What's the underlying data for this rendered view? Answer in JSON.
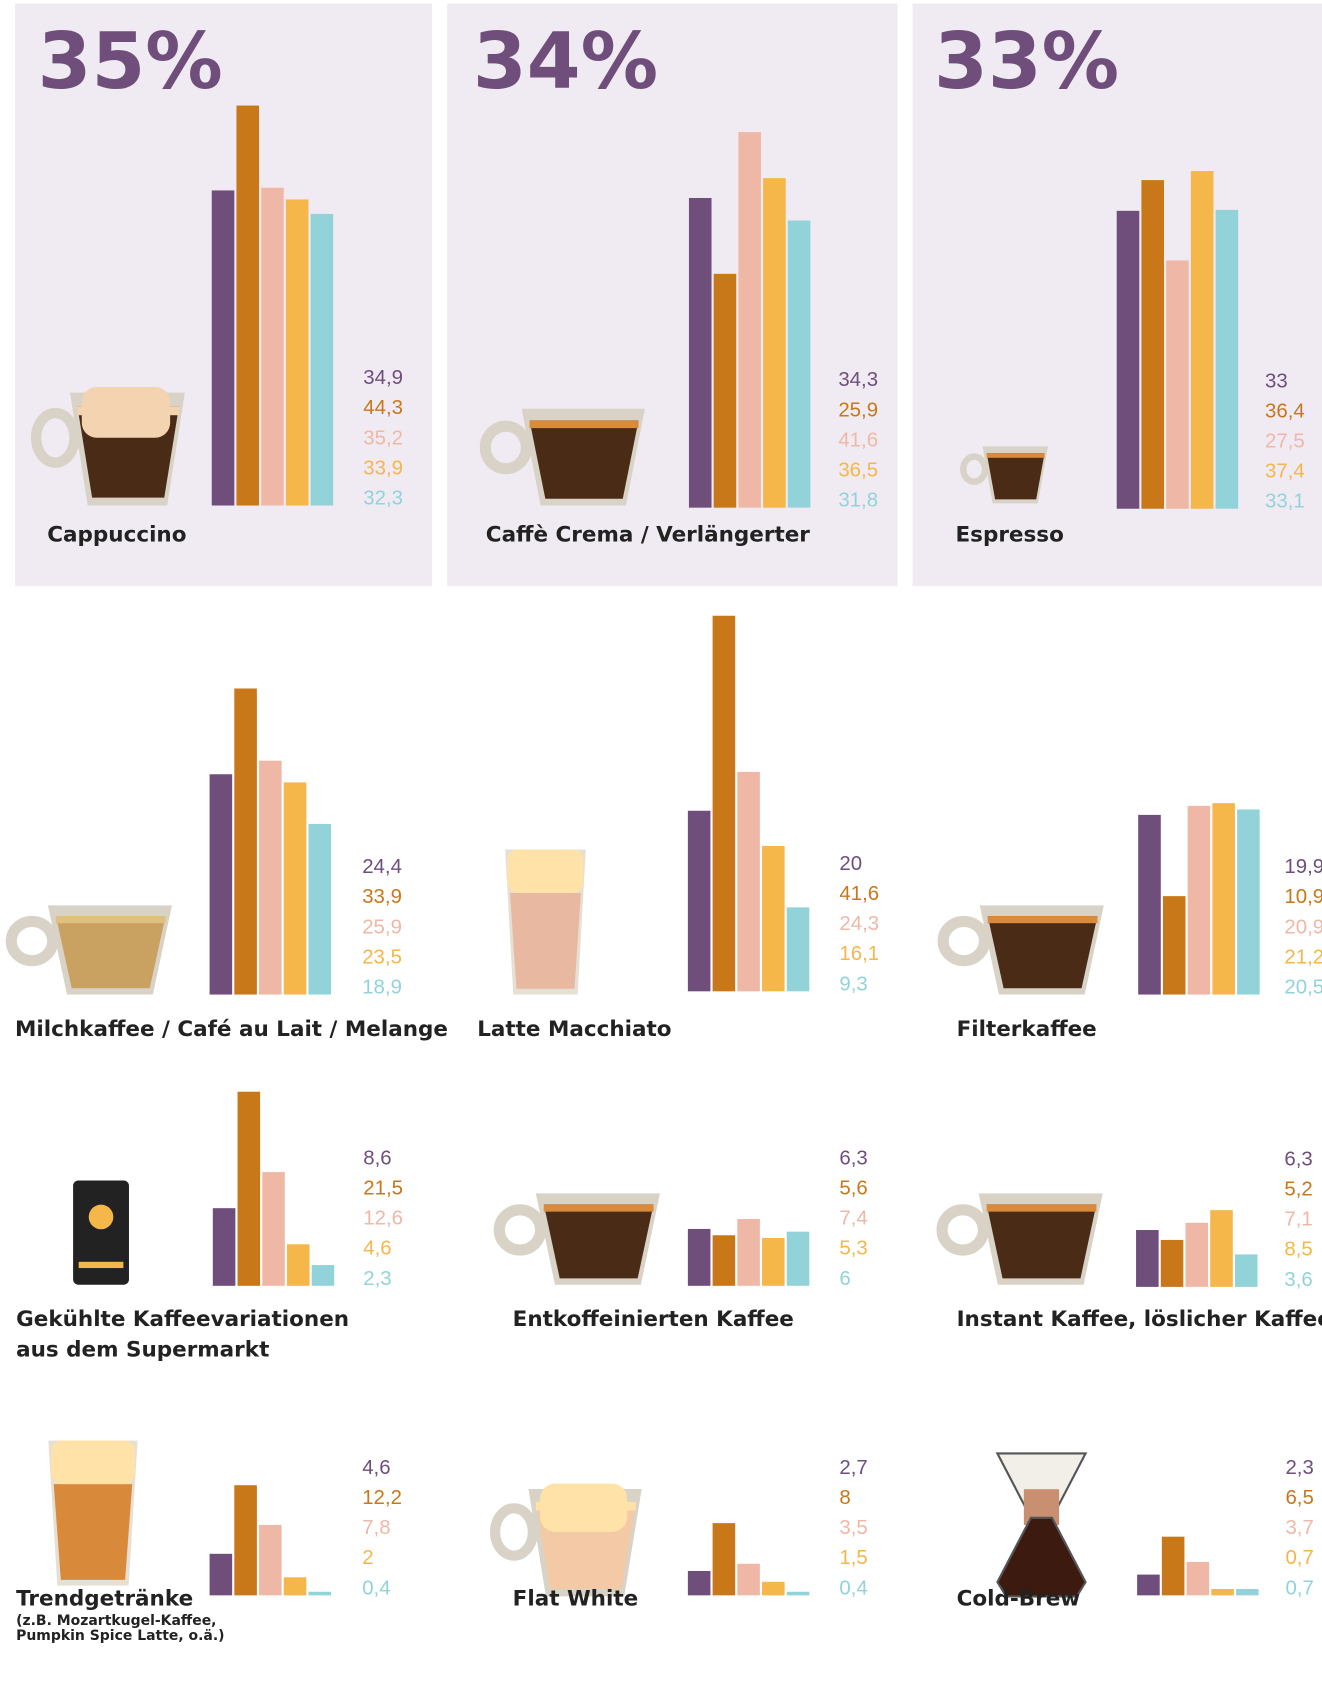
{
  "chart_data": [
    {
      "type": "bar",
      "headline": "35%",
      "title": [
        "Cappuccino"
      ],
      "values": [
        34.9,
        44.3,
        35.2,
        33.9,
        32.3
      ],
      "value_labels": [
        "34,9",
        "44,3",
        "35,2",
        "33,9",
        "32,3"
      ],
      "colors": [
        "#6f4e7c",
        "#c87719",
        "#efb8a6",
        "#f5b64a",
        "#92d3d9"
      ],
      "ylim": [
        0,
        50
      ]
    },
    {
      "type": "bar",
      "headline": "34%",
      "title": [
        "Caffè Crema / Verlängerter"
      ],
      "values": [
        34.3,
        25.9,
        41.6,
        36.5,
        31.8
      ],
      "value_labels": [
        "34,3",
        "25,9",
        "41,6",
        "36,5",
        "31,8"
      ],
      "colors": [
        "#6f4e7c",
        "#c87719",
        "#efb8a6",
        "#f5b64a",
        "#92d3d9"
      ],
      "ylim": [
        0,
        50
      ]
    },
    {
      "type": "bar",
      "headline": "33%",
      "title": [
        "Espresso"
      ],
      "values": [
        33,
        36.4,
        27.5,
        37.4,
        33.1
      ],
      "value_labels": [
        "33",
        "36,4",
        "27,5",
        "37,4",
        "33,1"
      ],
      "colors": [
        "#6f4e7c",
        "#c87719",
        "#efb8a6",
        "#f5b64a",
        "#92d3d9"
      ],
      "ylim": [
        0,
        50
      ]
    },
    {
      "type": "bar",
      "title": [
        "Milchkaffee / Café au Lait / Melange"
      ],
      "values": [
        24.4,
        33.9,
        25.9,
        23.5,
        18.9
      ],
      "value_labels": [
        "24,4",
        "33,9",
        "25,9",
        "23,5",
        "18,9"
      ],
      "colors": [
        "#6f4e7c",
        "#c87719",
        "#efb8a6",
        "#f5b64a",
        "#92d3d9"
      ],
      "ylim": [
        0,
        50
      ]
    },
    {
      "type": "bar",
      "title": [
        "Latte Macchiato"
      ],
      "values": [
        20,
        41.6,
        24.3,
        16.1,
        9.3
      ],
      "value_labels": [
        "20",
        "41,6",
        "24,3",
        "16,1",
        "9,3"
      ],
      "colors": [
        "#6f4e7c",
        "#c87719",
        "#efb8a6",
        "#f5b64a",
        "#92d3d9"
      ],
      "ylim": [
        0,
        50
      ]
    },
    {
      "type": "bar",
      "title": [
        "Filterkaffee"
      ],
      "values": [
        19.9,
        10.9,
        20.9,
        21.2,
        20.5
      ],
      "value_labels": [
        "19,9",
        "10,9",
        "20,9",
        "21,2",
        "20,5"
      ],
      "colors": [
        "#6f4e7c",
        "#c87719",
        "#efb8a6",
        "#f5b64a",
        "#92d3d9"
      ],
      "ylim": [
        0,
        50
      ]
    },
    {
      "type": "bar",
      "title": [
        "Gekühlte Kaffeevariationen",
        "aus dem Supermarkt"
      ],
      "values": [
        8.6,
        21.5,
        12.6,
        4.6,
        2.3
      ],
      "value_labels": [
        "8,6",
        "21,5",
        "12,6",
        "4,6",
        "2,3"
      ],
      "colors": [
        "#6f4e7c",
        "#c87719",
        "#efb8a6",
        "#f5b64a",
        "#92d3d9"
      ],
      "ylim": [
        0,
        50
      ]
    },
    {
      "type": "bar",
      "title": [
        "Entkoffeinierten Kaffee"
      ],
      "values": [
        6.3,
        5.6,
        7.4,
        5.3,
        6
      ],
      "value_labels": [
        "6,3",
        "5,6",
        "7,4",
        "5,3",
        "6"
      ],
      "colors": [
        "#6f4e7c",
        "#c87719",
        "#efb8a6",
        "#f5b64a",
        "#92d3d9"
      ],
      "ylim": [
        0,
        50
      ]
    },
    {
      "type": "bar",
      "title": [
        "Instant Kaffee, löslicher Kaffee"
      ],
      "values": [
        6.3,
        5.2,
        7.1,
        8.5,
        3.6
      ],
      "value_labels": [
        "6,3",
        "5,2",
        "7,1",
        "8,5",
        "3,6"
      ],
      "colors": [
        "#6f4e7c",
        "#c87719",
        "#efb8a6",
        "#f5b64a",
        "#92d3d9"
      ],
      "ylim": [
        0,
        50
      ]
    },
    {
      "type": "bar",
      "title": [
        "Trendgetränke"
      ],
      "subtitle": [
        "(z.B. Mozartkugel-Kaffee,",
        "Pumpkin Spice Latte, o.ä.)"
      ],
      "values": [
        4.6,
        12.2,
        7.8,
        2,
        0.4
      ],
      "value_labels": [
        "4,6",
        "12,2",
        "7,8",
        "2",
        "0,4"
      ],
      "colors": [
        "#6f4e7c",
        "#c87719",
        "#efb8a6",
        "#f5b64a",
        "#92d3d9"
      ],
      "ylim": [
        0,
        50
      ]
    },
    {
      "type": "bar",
      "title": [
        "Flat White"
      ],
      "values": [
        2.7,
        8,
        3.5,
        1.5,
        0.4
      ],
      "value_labels": [
        "2,7",
        "8",
        "3,5",
        "1,5",
        "0,4"
      ],
      "colors": [
        "#6f4e7c",
        "#c87719",
        "#efb8a6",
        "#f5b64a",
        "#92d3d9"
      ],
      "ylim": [
        0,
        50
      ]
    },
    {
      "type": "bar",
      "title": [
        "Cold-Brew"
      ],
      "values": [
        2.3,
        6.5,
        3.7,
        0.7,
        0.7
      ],
      "value_labels": [
        "2,3",
        "6,5",
        "3,7",
        "0,7",
        "0,7"
      ],
      "colors": [
        "#6f4e7c",
        "#c87719",
        "#efb8a6",
        "#f5b64a",
        "#92d3d9"
      ],
      "ylim": [
        0,
        50
      ]
    }
  ]
}
